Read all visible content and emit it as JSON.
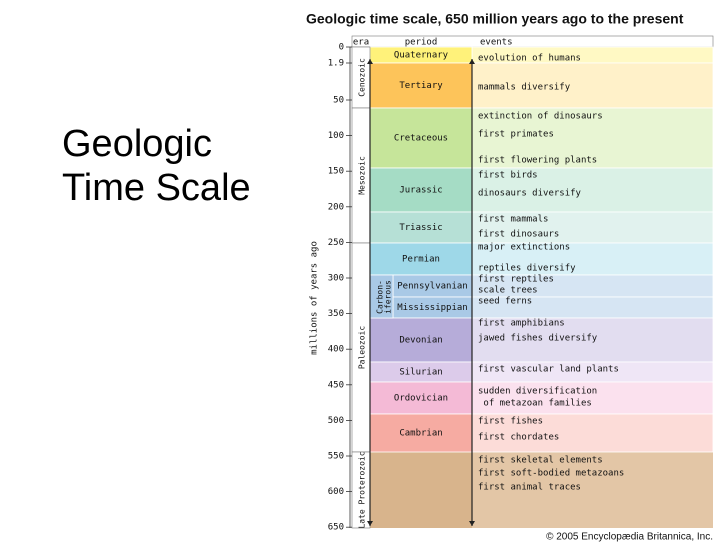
{
  "slide": {
    "title_lines": [
      "Geologic",
      "Time Scale"
    ]
  },
  "figure": {
    "title": "Geologic time scale, 650 million years ago to the present",
    "headers": {
      "era": "era",
      "period": "period",
      "events": "events"
    },
    "axis_label": "millions of years ago",
    "ticks": [
      0,
      1.9,
      50,
      100,
      150,
      200,
      250,
      300,
      350,
      400,
      450,
      500,
      550,
      600,
      650
    ],
    "eras": [
      "Cenozoic",
      "Mesozoic",
      "Paleozoic",
      "Late Proterozoic"
    ],
    "carboniferous": [
      "Carbon-",
      "iferous"
    ],
    "periods": [
      "Quaternary",
      "Tertiary",
      "Cretaceous",
      "Jurassic",
      "Triassic",
      "Permian",
      "Pennsylvanian",
      "Mississippian",
      "Devonian",
      "Silurian",
      "Ordovician",
      "Cambrian"
    ],
    "events": [
      "evolution of humans",
      "mammals diversify",
      "extinction of dinosaurs",
      "first primates",
      "first flowering plants",
      "first birds",
      "dinosaurs diversify",
      "first mammals",
      "first dinosaurs",
      "major extinctions",
      "reptiles diversify",
      "first reptiles",
      "scale trees",
      "seed ferns",
      "first amphibians",
      "jawed fishes diversify",
      "first vascular land plants",
      "sudden diversification",
      " of metazoan families",
      "first fishes",
      "first chordates",
      "first skeletal elements",
      "first soft-bodied metazoans",
      "first animal traces"
    ],
    "credit": "© 2005 Encyclopædia Britannica, Inc."
  }
}
